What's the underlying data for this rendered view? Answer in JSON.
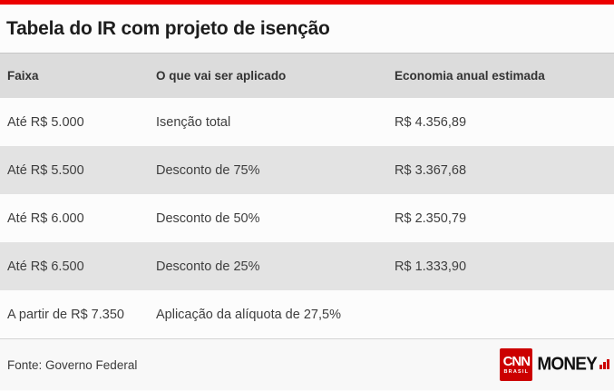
{
  "chart_data": {
    "type": "table",
    "title": "Tabela do IR com projeto de isenção",
    "columns": [
      "Faixa",
      "O que vai ser aplicado",
      "Economia anual estimada"
    ],
    "rows": [
      [
        "Até R$ 5.000",
        "Isenção total",
        "R$ 4.356,89"
      ],
      [
        "Até R$ 5.500",
        "Desconto de 75%",
        "R$ 3.367,68"
      ],
      [
        "Até R$ 6.000",
        "Desconto de 50%",
        "R$ 2.350,79"
      ],
      [
        "Até R$ 6.500",
        "Desconto de 25%",
        "R$ 1.333,90"
      ],
      [
        "A partir de R$ 7.350",
        "Aplicação da alíquota de 27,5%",
        ""
      ]
    ],
    "source": "Fonte: Governo Federal",
    "layout": "3-column infographic table, alternating row shading, no gridlines"
  },
  "branding": {
    "cnn": "CNN",
    "brasil": "BRASIL",
    "money": "MONEY"
  },
  "colors": {
    "accent_red": "#ec0000",
    "logo_red": "#cc0000",
    "header_bg": "#dcdcdc",
    "row_alt_bg": "#e3e3e3",
    "footer_bg": "#f8f8f8",
    "title_color": "#1d1d1d",
    "body_text": "#3e3e3e"
  }
}
